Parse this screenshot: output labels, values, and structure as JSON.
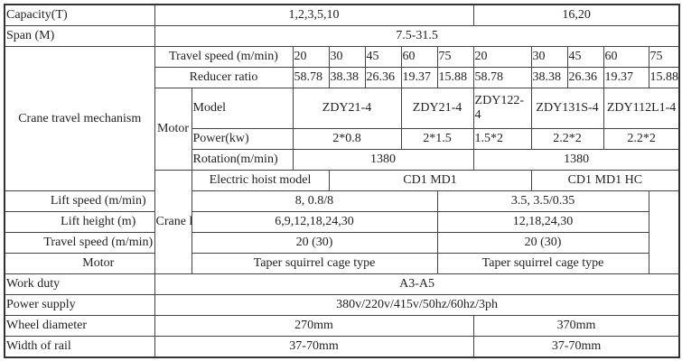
{
  "capacity": {
    "label": "Capacity(T)",
    "values": [
      "1,2,3,5,10",
      "16,20"
    ]
  },
  "span": {
    "label": "Span (M)",
    "value": "7.5-31.5"
  },
  "travel_mechanism": {
    "label": "Crane travel mechanism",
    "travel_speed": {
      "label": "Travel speed (m/min)",
      "values": [
        "20",
        "30",
        "45",
        "60",
        "75",
        "20",
        "30",
        "45",
        "60",
        "75"
      ]
    },
    "reducer_ratio": {
      "label": "Reducer ratio",
      "values": [
        "58.78",
        "38.38",
        "26.36",
        "19.37",
        "15.88",
        "58.78",
        "38.38",
        "26.36",
        "19.37",
        "15.88"
      ]
    },
    "motor": {
      "label": "Motor",
      "model": {
        "label": "Model",
        "values": [
          "ZDY21-4",
          "ZDY21-4",
          "ZDY122-4",
          "ZDY131S-4",
          "ZDY112L1-4"
        ]
      },
      "power": {
        "label": "Power(kw)",
        "values": [
          "2*0.8",
          "2*1.5",
          "1.5*2",
          "2.2*2",
          "2.2*2"
        ]
      },
      "rotation": {
        "label": "Rotation(m/min)",
        "values": [
          "1380",
          "1380"
        ]
      }
    }
  },
  "lift_hoist": {
    "label": "Crane lift and hoist travel",
    "rows": [
      {
        "label": "Electric hoist model",
        "values": [
          "CD1  MD1",
          "CD1  MD1 HC"
        ]
      },
      {
        "label": "Lift speed (m/min)",
        "values": [
          "8,  0.8/8",
          "3.5,  3.5/0.35"
        ]
      },
      {
        "label": "Lift height (m)",
        "values": [
          "6,9,12,18,24,30",
          "12,18,24,30"
        ]
      },
      {
        "label": "Travel speed (m/min)",
        "values": [
          "20 (30)",
          "20 (30)"
        ]
      },
      {
        "label": "Motor",
        "values": [
          "Taper squirrel cage type",
          "Taper squirrel cage type"
        ]
      }
    ]
  },
  "work_duty": {
    "label": "Work duty",
    "value": "A3-A5"
  },
  "power_supply": {
    "label": "Power supply",
    "value": "380v/220v/415v/50hz/60hz/3ph"
  },
  "wheel_diameter": {
    "label": "Wheel diameter",
    "values": [
      "270mm",
      "370mm"
    ]
  },
  "rail_width": {
    "label": "Width of rail",
    "values": [
      "37-70mm",
      "37-70mm"
    ]
  }
}
